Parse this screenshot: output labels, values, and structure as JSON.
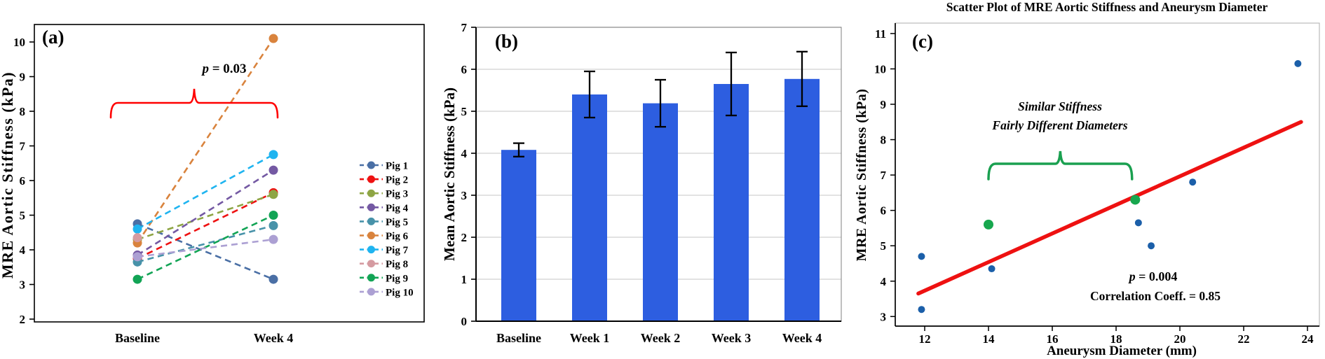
{
  "chart_data": [
    {
      "id": "a",
      "type": "line",
      "panel_label": "(a)",
      "ylabel": "MRE Aortic Stiffness (kPa)",
      "ylim": [
        2,
        10
      ],
      "yticks": [
        2,
        3,
        4,
        5,
        6,
        7,
        8,
        9,
        10
      ],
      "categories": [
        "Baseline",
        "Week 4"
      ],
      "series": [
        {
          "name": "Pig 1",
          "color": "#4a6fa5",
          "values": [
            4.75,
            3.15
          ]
        },
        {
          "name": "Pig 2",
          "color": "#ee1111",
          "values": [
            3.75,
            5.65
          ]
        },
        {
          "name": "Pig 3",
          "color": "#8ea544",
          "values": [
            4.3,
            5.6
          ]
        },
        {
          "name": "Pig 4",
          "color": "#7459a3",
          "values": [
            3.85,
            6.3
          ]
        },
        {
          "name": "Pig 5",
          "color": "#4792a9",
          "values": [
            3.65,
            4.7
          ]
        },
        {
          "name": "Pig 6",
          "color": "#d9833d",
          "values": [
            4.2,
            10.1
          ]
        },
        {
          "name": "Pig 7",
          "color": "#1fb4f0",
          "values": [
            4.6,
            6.75
          ]
        },
        {
          "name": "Pig 8",
          "color": "#d59ba1",
          "values": [
            4.35,
            null
          ]
        },
        {
          "name": "Pig 9",
          "color": "#12a455",
          "values": [
            3.15,
            5.0
          ]
        },
        {
          "name": "Pig 10",
          "color": "#aca0d3",
          "values": [
            3.8,
            4.3
          ]
        }
      ],
      "annotation": {
        "text": "p = 0.03",
        "bracket_color": "#ff0000"
      },
      "legend_position": "right"
    },
    {
      "id": "b",
      "type": "bar",
      "panel_label": "(b)",
      "ylabel": "Mean Aortic Stiffness (kPa)",
      "ylim": [
        0,
        7
      ],
      "yticks": [
        0,
        1,
        2,
        3,
        4,
        5,
        6,
        7
      ],
      "categories": [
        "Baseline",
        "Week 1",
        "Week 2",
        "Week 3",
        "Week 4"
      ],
      "values": [
        4.08,
        5.4,
        5.19,
        5.65,
        5.77
      ],
      "errors": [
        0.16,
        0.55,
        0.56,
        0.75,
        0.65
      ],
      "bar_color": "#2d5ee0",
      "grid": true,
      "grid_color": "#d9d9d9"
    },
    {
      "id": "c",
      "type": "scatter",
      "title": "Scatter Plot of MRE Aortic Stiffness and Aneurysm Diameter",
      "panel_label": "(c)",
      "xlabel": "Aneurysm Diameter (mm)",
      "ylabel": "MRE Aortic Stiffness (kPa)",
      "xlim": [
        11,
        24.5
      ],
      "ylim": [
        2.7,
        11.3
      ],
      "xticks": [
        12,
        14,
        16,
        18,
        20,
        22,
        24
      ],
      "yticks": [
        3,
        4,
        5,
        6,
        7,
        8,
        9,
        10,
        11
      ],
      "points_blue": [
        [
          11.9,
          3.2
        ],
        [
          11.9,
          4.7
        ],
        [
          14.1,
          4.35
        ],
        [
          18.7,
          5.65
        ],
        [
          19.1,
          5.0
        ],
        [
          20.4,
          6.8
        ],
        [
          23.7,
          10.15
        ]
      ],
      "points_green": [
        [
          14.0,
          5.6
        ],
        [
          18.6,
          6.3
        ]
      ],
      "point_color": "#1b5fa9",
      "highlight_color": "#17a74e",
      "trend_line": {
        "x1": 11.8,
        "y1": 3.65,
        "x2": 23.8,
        "y2": 8.5,
        "color": "#ee1111"
      },
      "annotation": {
        "line1": "Similar Stiffness",
        "line2": "Fairly Different Diameters",
        "bracket_x1": 14.0,
        "bracket_x2": 18.5,
        "bracket_color": "#1aa050"
      },
      "stats": {
        "p": "p = 0.004",
        "corr": "Correlation Coeff. = 0.85"
      }
    }
  ]
}
